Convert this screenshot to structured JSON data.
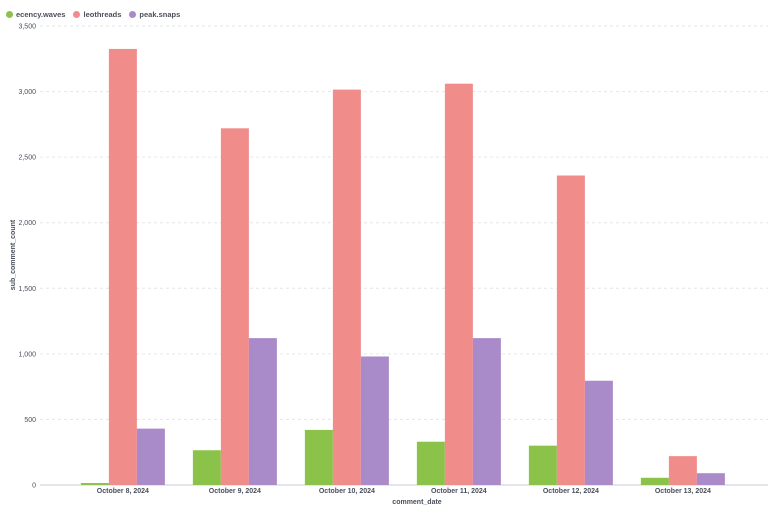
{
  "chart_data": {
    "type": "bar",
    "categories": [
      "October 8, 2024",
      "October 9, 2024",
      "October 10, 2024",
      "October 11, 2024",
      "October 12, 2024",
      "October 13, 2024"
    ],
    "series": [
      {
        "name": "ecency.waves",
        "color": "#8bc34a",
        "values": [
          15,
          265,
          420,
          330,
          300,
          55
        ]
      },
      {
        "name": "leothreads",
        "color": "#f08c8a",
        "values": [
          3325,
          2720,
          3015,
          3060,
          2360,
          220
        ]
      },
      {
        "name": "peak.snaps",
        "color": "#a98bc9",
        "values": [
          430,
          1120,
          980,
          1120,
          795,
          90
        ]
      }
    ],
    "xlabel": "comment_date",
    "ylabel": "sub_comment_count",
    "ylim": [
      0,
      3500
    ],
    "yticks": [
      0,
      500,
      1000,
      1500,
      2000,
      2500,
      3000,
      3500
    ],
    "ytick_labels": [
      "0",
      "500",
      "1,000",
      "1,500",
      "2,000",
      "2,500",
      "3,000",
      "3,500"
    ],
    "legend_position": "top-left",
    "grid": true
  }
}
